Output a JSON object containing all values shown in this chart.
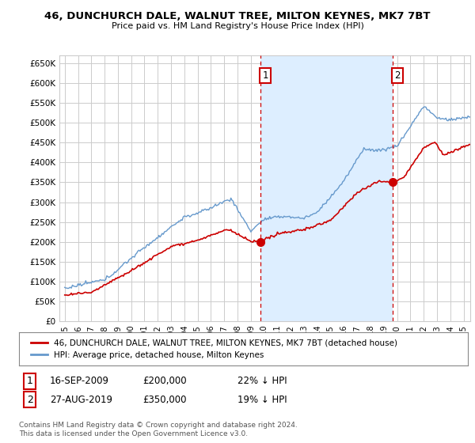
{
  "title": "46, DUNCHURCH DALE, WALNUT TREE, MILTON KEYNES, MK7 7BT",
  "subtitle": "Price paid vs. HM Land Registry's House Price Index (HPI)",
  "ylim": [
    0,
    670000
  ],
  "yticks": [
    0,
    50000,
    100000,
    150000,
    200000,
    250000,
    300000,
    350000,
    400000,
    450000,
    500000,
    550000,
    600000,
    650000
  ],
  "ytick_labels": [
    "£0",
    "£50K",
    "£100K",
    "£150K",
    "£200K",
    "£250K",
    "£300K",
    "£350K",
    "£400K",
    "£450K",
    "£500K",
    "£550K",
    "£600K",
    "£650K"
  ],
  "background_color": "#ffffff",
  "plot_bg_color": "#ffffff",
  "shade_color": "#ddeeff",
  "grid_color": "#cccccc",
  "red_color": "#cc0000",
  "blue_color": "#6699cc",
  "ann1_year": 2009.71,
  "ann2_year": 2019.66,
  "legend_label1": "46, DUNCHURCH DALE, WALNUT TREE, MILTON KEYNES, MK7 7BT (detached house)",
  "legend_label2": "HPI: Average price, detached house, Milton Keynes",
  "note1_date": "16-SEP-2009",
  "note1_price": "£200,000",
  "note1_pct": "22% ↓ HPI",
  "note2_date": "27-AUG-2019",
  "note2_price": "£350,000",
  "note2_pct": "19% ↓ HPI",
  "footer": "Contains HM Land Registry data © Crown copyright and database right 2024.\nThis data is licensed under the Open Government Licence v3.0."
}
